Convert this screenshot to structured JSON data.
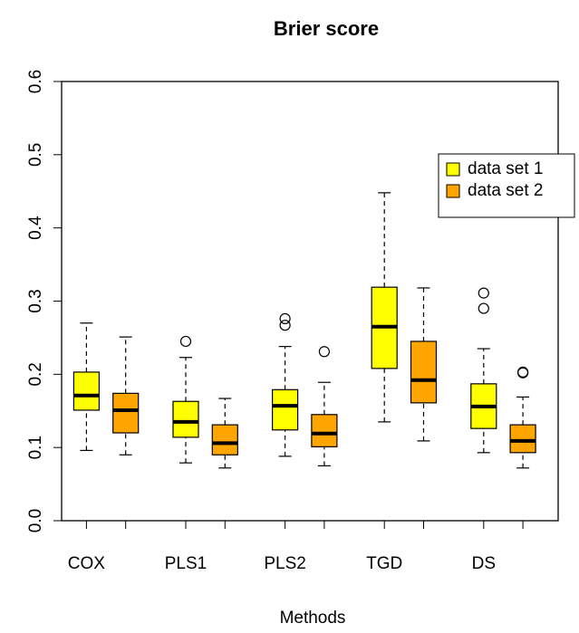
{
  "chart_data": {
    "type": "boxplot",
    "title": "Brier score",
    "x_label": "Methods",
    "categories": [
      "COX",
      "PLS1",
      "PLS2",
      "TGD",
      "DS"
    ],
    "series": [
      {
        "name": "data set 1",
        "color": "#ffff00",
        "values": [
          {
            "low": 0.096,
            "q1": 0.151,
            "median": 0.171,
            "q3": 0.203,
            "high": 0.27,
            "outliers": []
          },
          {
            "low": 0.079,
            "q1": 0.114,
            "median": 0.135,
            "q3": 0.163,
            "high": 0.223,
            "outliers": [
              0.245
            ]
          },
          {
            "low": 0.088,
            "q1": 0.124,
            "median": 0.157,
            "q3": 0.179,
            "high": 0.238,
            "outliers": [
              0.276,
              0.267
            ]
          },
          {
            "low": 0.135,
            "q1": 0.208,
            "median": 0.265,
            "q3": 0.319,
            "high": 0.448,
            "outliers": []
          },
          {
            "low": 0.093,
            "q1": 0.126,
            "median": 0.156,
            "q3": 0.187,
            "high": 0.235,
            "outliers": [
              0.311,
              0.29
            ]
          }
        ]
      },
      {
        "name": "data set 2",
        "color": "#ffa500",
        "values": [
          {
            "low": 0.09,
            "q1": 0.12,
            "median": 0.151,
            "q3": 0.174,
            "high": 0.251,
            "outliers": []
          },
          {
            "low": 0.072,
            "q1": 0.09,
            "median": 0.106,
            "q3": 0.131,
            "high": 0.167,
            "outliers": []
          },
          {
            "low": 0.075,
            "q1": 0.101,
            "median": 0.119,
            "q3": 0.145,
            "high": 0.189,
            "outliers": [
              0.231
            ]
          },
          {
            "low": 0.109,
            "q1": 0.161,
            "median": 0.192,
            "q3": 0.245,
            "high": 0.318,
            "outliers": []
          },
          {
            "low": 0.072,
            "q1": 0.093,
            "median": 0.109,
            "q3": 0.131,
            "high": 0.169,
            "outliers": [
              0.203,
              0.202
            ]
          }
        ]
      }
    ],
    "ylim": [
      0,
      0.6
    ],
    "yticks": [
      {
        "value": 0,
        "label": "0.0"
      },
      0.1,
      0.2,
      0.3,
      0.4,
      0.5,
      0.6
    ],
    "legend_position": "right"
  }
}
